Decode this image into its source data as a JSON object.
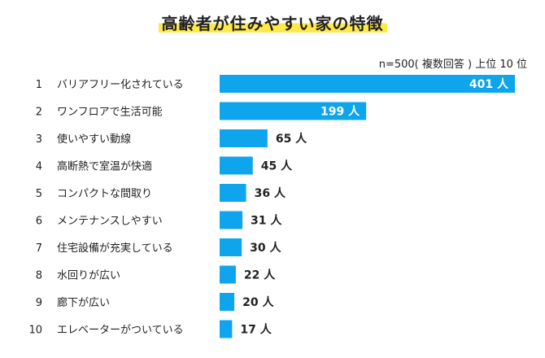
{
  "chart_data": {
    "type": "bar",
    "orientation": "horizontal",
    "title": "高齢者が住みやすい家の特徴",
    "note": "n=500( 複数回答 ) 上位 10 位",
    "unit": "人",
    "ranks": [
      "1",
      "2",
      "3",
      "4",
      "5",
      "6",
      "7",
      "8",
      "9",
      "10"
    ],
    "categories": [
      "バリアフリー化されている",
      "ワンフロアで生活可能",
      "使いやすい動線",
      "高断熱で室温が快適",
      "コンパクトな間取り",
      "メンテナンスしやすい",
      "住宅設備が充実している",
      "水回りが広い",
      "廊下が広い",
      "エレベーターがついている"
    ],
    "values": [
      401,
      199,
      65,
      45,
      36,
      31,
      30,
      22,
      20,
      17
    ],
    "value_labels": [
      "401 人",
      "199 人",
      "65 人",
      "45 人",
      "36 人",
      "31 人",
      "30 人",
      "22 人",
      "20 人",
      "17 人"
    ],
    "bar_color": "#0ea5ec",
    "title_highlight_color": "#fde94a",
    "xlim": [
      0,
      401
    ],
    "legend": "none",
    "grid": false
  }
}
